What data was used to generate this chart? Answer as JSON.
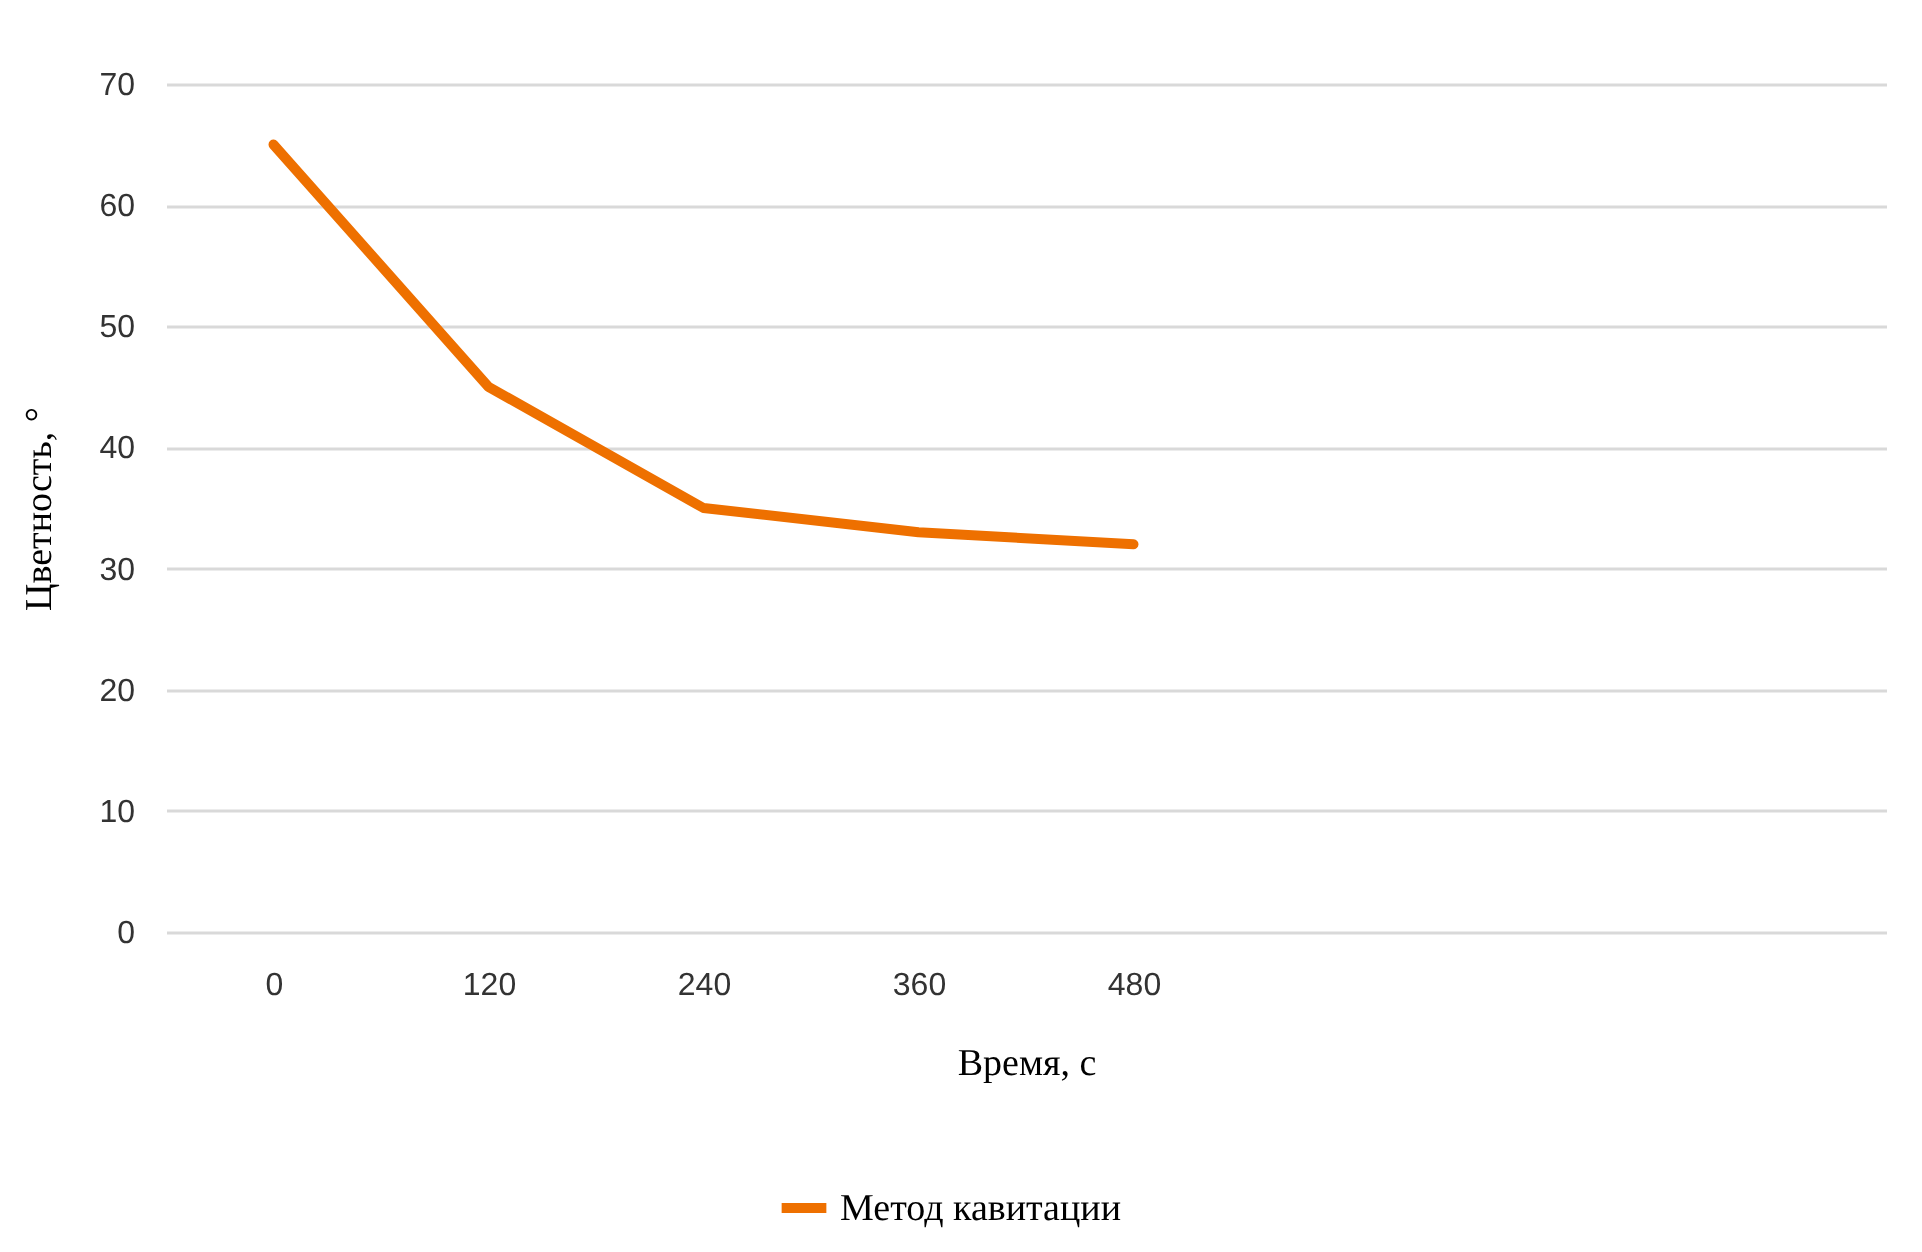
{
  "chart_data": {
    "type": "line",
    "xlabel": "Время, с",
    "ylabel": "Цветность, °",
    "categories": [
      "0",
      "120",
      "240",
      "360",
      "480",
      null,
      null,
      null
    ],
    "series": [
      {
        "name": "Метод кавитации",
        "color": "#ee7000",
        "values": [
          65,
          45,
          35,
          33,
          32,
          null,
          null,
          null
        ]
      }
    ],
    "ylim": [
      0,
      70
    ],
    "yticks": [
      0,
      10,
      20,
      30,
      40,
      50,
      60,
      70
    ],
    "grid": "y",
    "legend": "bottom",
    "marker": "none",
    "line_style": "solid"
  }
}
